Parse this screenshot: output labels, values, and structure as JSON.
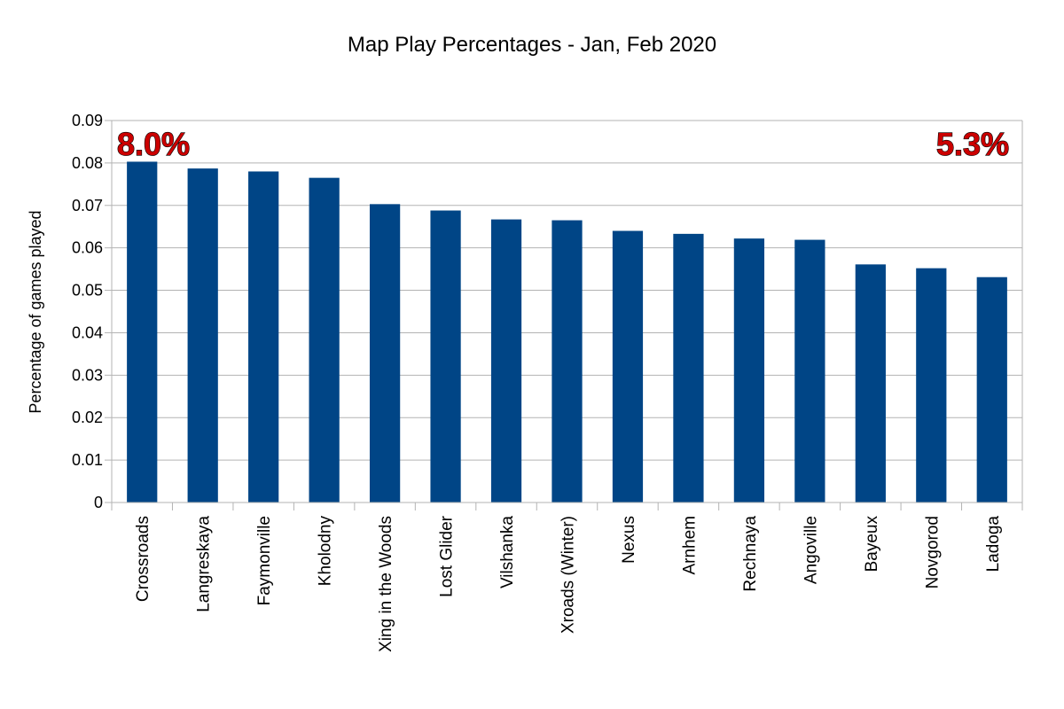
{
  "chart_data": {
    "type": "bar",
    "title": "Map Play Percentages - Jan, Feb 2020",
    "xlabel": "",
    "ylabel": "Percentage of games played",
    "ylim": [
      0,
      0.09
    ],
    "y_ticks": [
      "0",
      "0.01",
      "0.02",
      "0.03",
      "0.04",
      "0.05",
      "0.06",
      "0.07",
      "0.08",
      "0.09"
    ],
    "grid": true,
    "legend": "none",
    "categories": [
      "Crossroads",
      "Langreskaya",
      "Faymonville",
      "Kholodny",
      "Xing in the Woods",
      "Lost Glider",
      "Vilshanka",
      "Xroads (Winter)",
      "Nexus",
      "Arnhem",
      "Rechnaya",
      "Angoville",
      "Bayeux",
      "Novgorod",
      "Ladoga"
    ],
    "values": [
      0.0803,
      0.0787,
      0.078,
      0.0765,
      0.0703,
      0.0688,
      0.0667,
      0.0665,
      0.064,
      0.0633,
      0.0622,
      0.0619,
      0.0561,
      0.0552,
      0.0531
    ],
    "annotations": [
      {
        "text": "8.0%",
        "position": "top-left"
      },
      {
        "text": "5.3%",
        "position": "top-right"
      }
    ],
    "colors": {
      "bar": "#004586",
      "grid": "#b3b3b3",
      "axis": "#b3b3b3",
      "annotation": "#cc0000"
    }
  }
}
